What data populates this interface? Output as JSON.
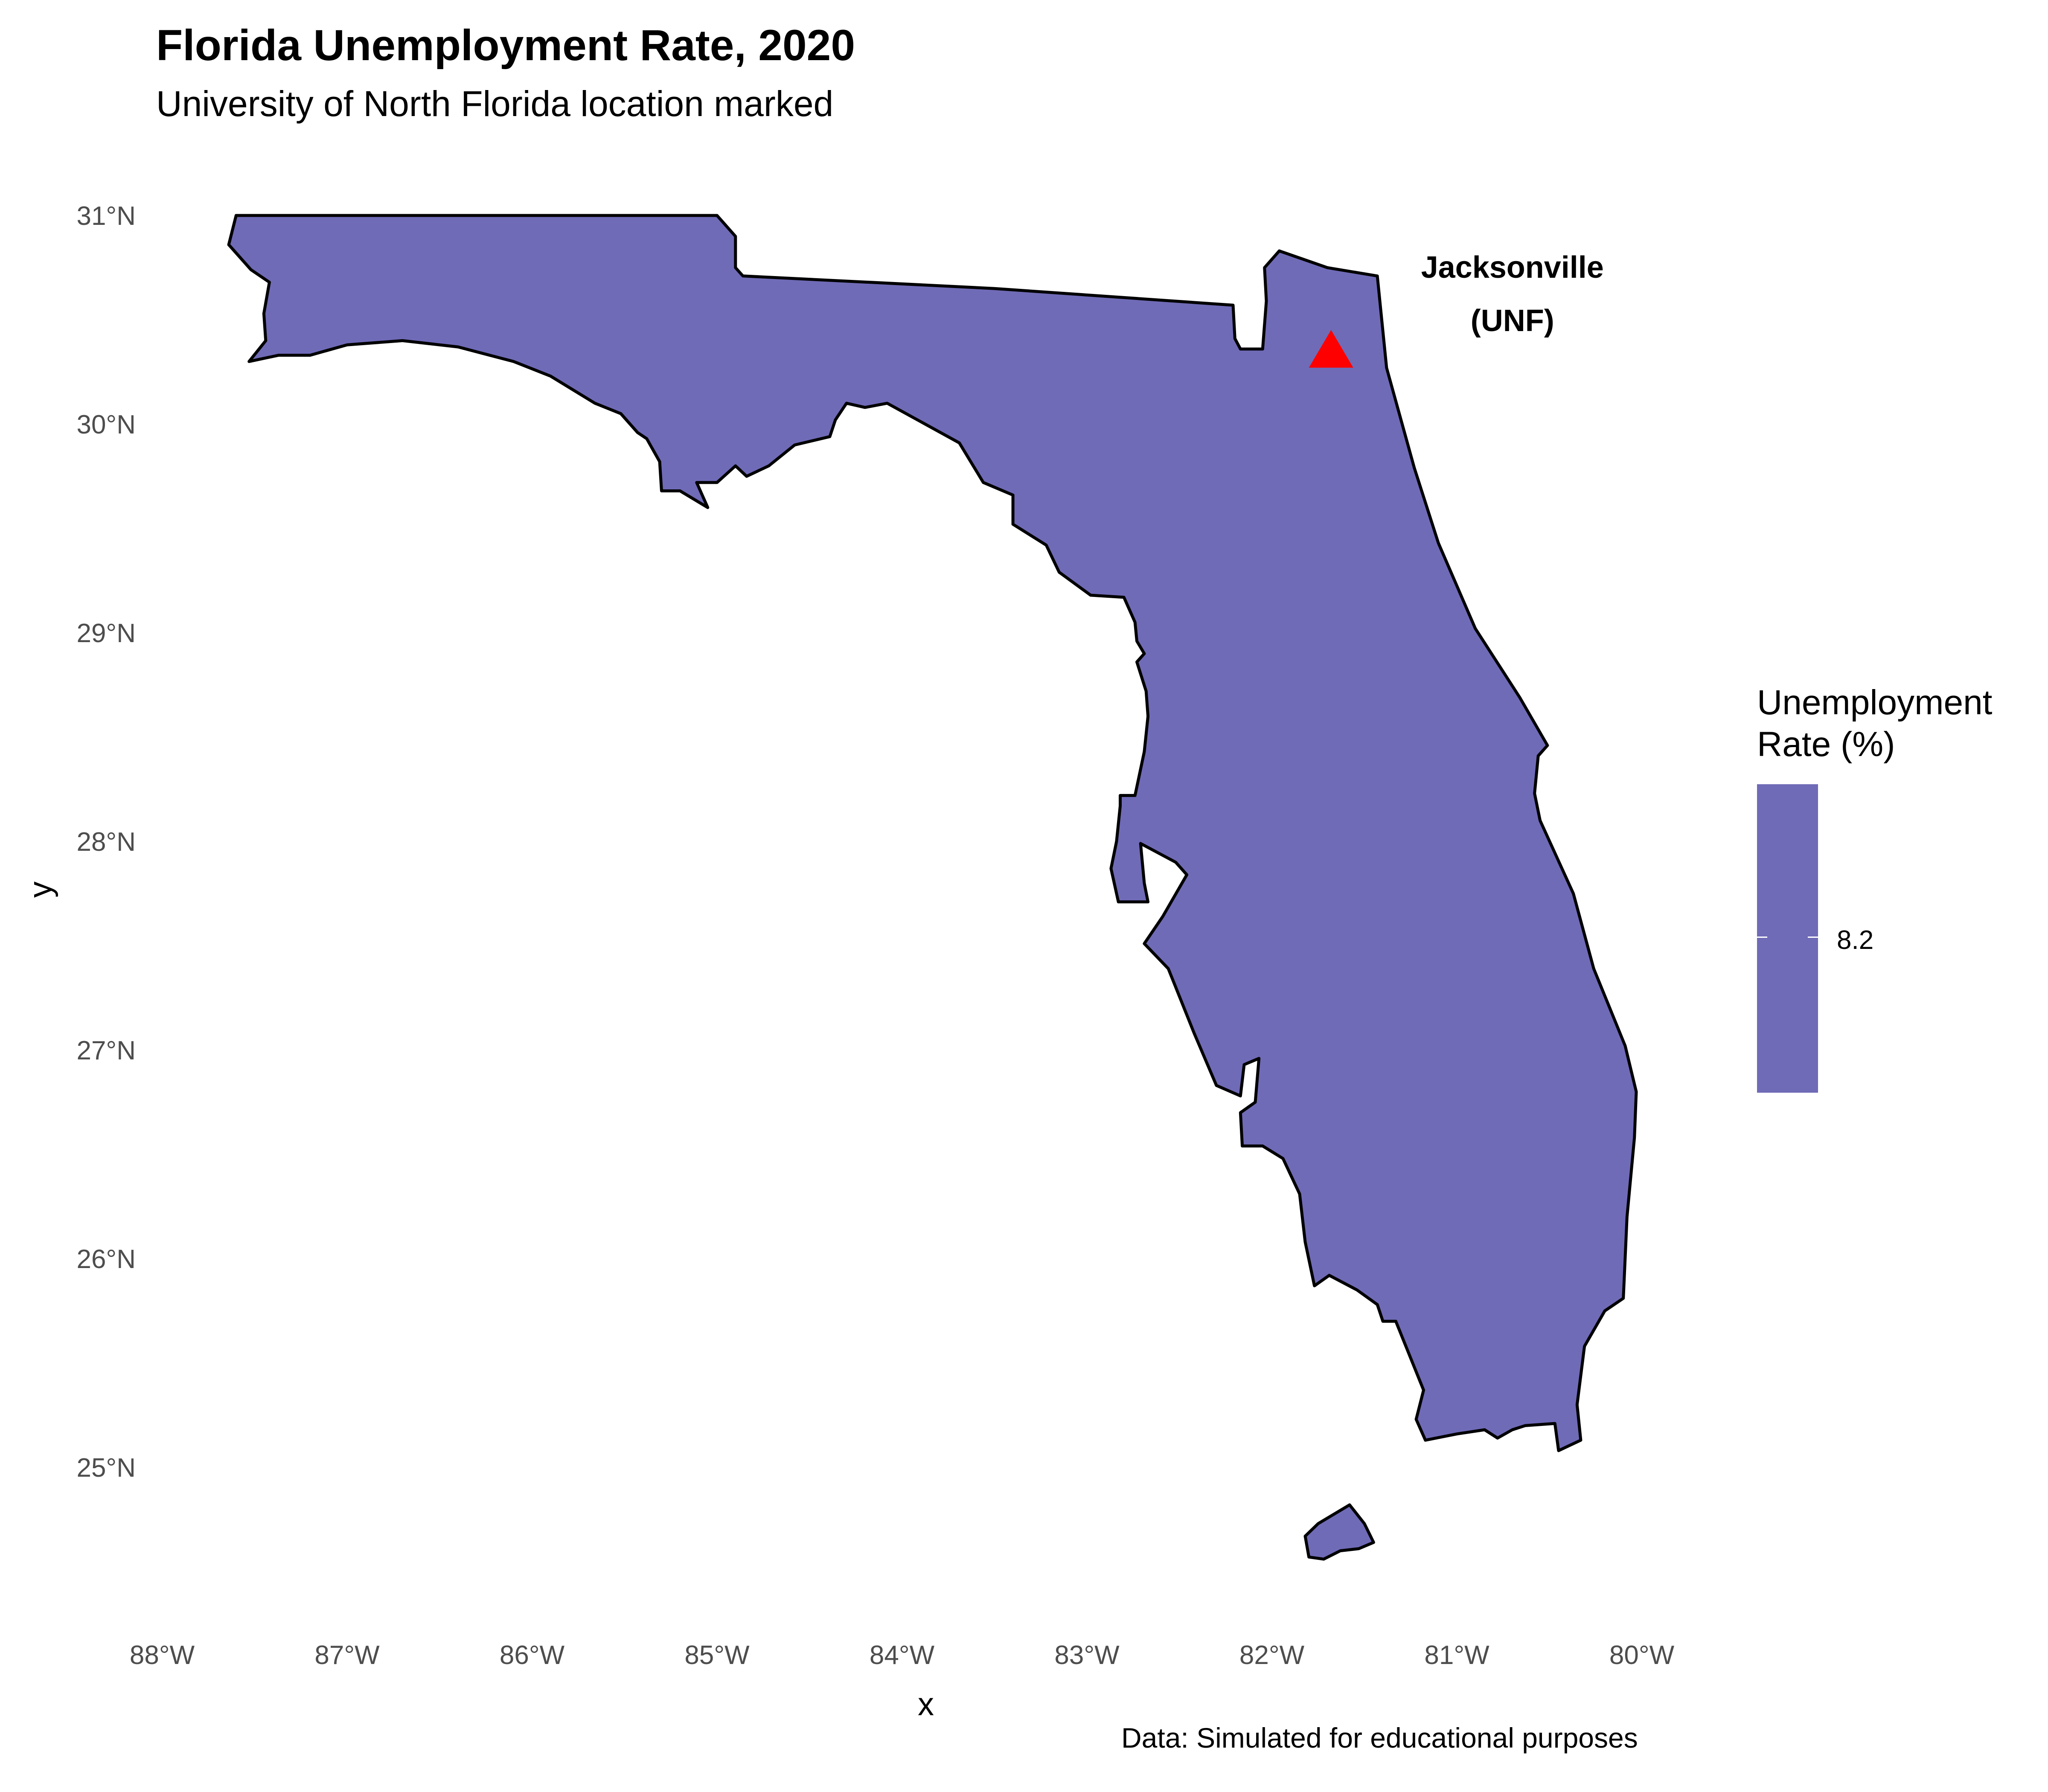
{
  "title": "Florida Unemployment Rate, 2020",
  "subtitle": "University of North Florida location marked",
  "caption": "Data: Simulated for educational purposes",
  "colors": {
    "fill": "#6f6bb7",
    "outline": "#000000",
    "marker": "#ff0000"
  },
  "chart_data": {
    "type": "map",
    "region": "Florida",
    "xlabel": "x",
    "ylabel": "y",
    "xlim": [
      -88,
      -79.9
    ],
    "ylim": [
      24.3,
      31.4
    ],
    "x_ticks": [
      {
        "value": -88,
        "label": "88°W"
      },
      {
        "value": -87,
        "label": "87°W"
      },
      {
        "value": -86,
        "label": "86°W"
      },
      {
        "value": -85,
        "label": "85°W"
      },
      {
        "value": -84,
        "label": "84°W"
      },
      {
        "value": -83,
        "label": "83°W"
      },
      {
        "value": -82,
        "label": "82°W"
      },
      {
        "value": -81,
        "label": "81°W"
      },
      {
        "value": -80,
        "label": "80°W"
      }
    ],
    "y_ticks": [
      {
        "value": 31,
        "label": "31°N"
      },
      {
        "value": 30,
        "label": "30°N"
      },
      {
        "value": 29,
        "label": "29°N"
      },
      {
        "value": 28,
        "label": "28°N"
      },
      {
        "value": 27,
        "label": "27°N"
      },
      {
        "value": 26,
        "label": "26°N"
      },
      {
        "value": 25,
        "label": "25°N"
      }
    ],
    "unemployment_rate": 8.2,
    "legend": {
      "title": "Unemployment Rate (%)",
      "tick_label": "8.2",
      "position": "right"
    },
    "marker": {
      "label_line1": "Jacksonville",
      "label_line2": "(UNF)",
      "lon": -81.68,
      "lat": 30.35,
      "shape": "triangle"
    },
    "mainland": [
      [
        -87.6,
        31.0
      ],
      [
        -86.7,
        31.0
      ],
      [
        -85.0,
        31.0
      ],
      [
        -84.9,
        30.9
      ],
      [
        -84.9,
        30.75
      ],
      [
        -84.86,
        30.71
      ],
      [
        -83.5,
        30.65
      ],
      [
        -82.21,
        30.57
      ],
      [
        -82.2,
        30.41
      ],
      [
        -82.17,
        30.36
      ],
      [
        -82.05,
        30.36
      ],
      [
        -82.03,
        30.59
      ],
      [
        -82.04,
        30.75
      ],
      [
        -81.96,
        30.83
      ],
      [
        -81.7,
        30.75
      ],
      [
        -81.43,
        30.71
      ],
      [
        -81.38,
        30.27
      ],
      [
        -81.23,
        29.79
      ],
      [
        -81.1,
        29.43
      ],
      [
        -80.9,
        29.02
      ],
      [
        -80.66,
        28.69
      ],
      [
        -80.51,
        28.46
      ],
      [
        -80.56,
        28.41
      ],
      [
        -80.58,
        28.23
      ],
      [
        -80.55,
        28.1
      ],
      [
        -80.37,
        27.75
      ],
      [
        -80.26,
        27.39
      ],
      [
        -80.09,
        27.02
      ],
      [
        -80.03,
        26.8
      ],
      [
        -80.04,
        26.58
      ],
      [
        -80.08,
        26.2
      ],
      [
        -80.1,
        25.81
      ],
      [
        -80.2,
        25.75
      ],
      [
        -80.31,
        25.58
      ],
      [
        -80.35,
        25.3
      ],
      [
        -80.33,
        25.13
      ],
      [
        -80.45,
        25.08
      ],
      [
        -80.47,
        25.21
      ],
      [
        -80.63,
        25.2
      ],
      [
        -80.7,
        25.18
      ],
      [
        -80.78,
        25.14
      ],
      [
        -80.85,
        25.18
      ],
      [
        -81.0,
        25.16
      ],
      [
        -81.17,
        25.13
      ],
      [
        -81.22,
        25.23
      ],
      [
        -81.18,
        25.37
      ],
      [
        -81.33,
        25.7
      ],
      [
        -81.4,
        25.7
      ],
      [
        -81.43,
        25.78
      ],
      [
        -81.54,
        25.85
      ],
      [
        -81.69,
        25.92
      ],
      [
        -81.77,
        25.87
      ],
      [
        -81.82,
        26.08
      ],
      [
        -81.85,
        26.31
      ],
      [
        -81.94,
        26.48
      ],
      [
        -82.05,
        26.54
      ],
      [
        -82.16,
        26.54
      ],
      [
        -82.17,
        26.7
      ],
      [
        -82.09,
        26.75
      ],
      [
        -82.07,
        26.96
      ],
      [
        -82.15,
        26.93
      ],
      [
        -82.17,
        26.78
      ],
      [
        -82.3,
        26.83
      ],
      [
        -82.42,
        27.08
      ],
      [
        -82.56,
        27.39
      ],
      [
        -82.69,
        27.51
      ],
      [
        -82.59,
        27.64
      ],
      [
        -82.46,
        27.84
      ],
      [
        -82.52,
        27.9
      ],
      [
        -82.71,
        27.99
      ],
      [
        -82.69,
        27.8
      ],
      [
        -82.67,
        27.71
      ],
      [
        -82.83,
        27.71
      ],
      [
        -82.87,
        27.87
      ],
      [
        -82.84,
        28.0
      ],
      [
        -82.82,
        28.17
      ],
      [
        -82.82,
        28.22
      ],
      [
        -82.74,
        28.22
      ],
      [
        -82.69,
        28.43
      ],
      [
        -82.67,
        28.6
      ],
      [
        -82.68,
        28.72
      ],
      [
        -82.73,
        28.86
      ],
      [
        -82.69,
        28.9
      ],
      [
        -82.73,
        28.96
      ],
      [
        -82.74,
        29.05
      ],
      [
        -82.8,
        29.17
      ],
      [
        -82.98,
        29.18
      ],
      [
        -83.15,
        29.29
      ],
      [
        -83.22,
        29.42
      ],
      [
        -83.4,
        29.52
      ],
      [
        -83.4,
        29.66
      ],
      [
        -83.56,
        29.72
      ],
      [
        -83.69,
        29.91
      ],
      [
        -84.08,
        30.1
      ],
      [
        -84.2,
        30.08
      ],
      [
        -84.3,
        30.1
      ],
      [
        -84.36,
        30.02
      ],
      [
        -84.39,
        29.94
      ],
      [
        -84.58,
        29.9
      ],
      [
        -84.72,
        29.8
      ],
      [
        -84.84,
        29.75
      ],
      [
        -84.9,
        29.8
      ],
      [
        -85.0,
        29.72
      ],
      [
        -85.11,
        29.72
      ],
      [
        -85.05,
        29.6
      ],
      [
        -85.2,
        29.68
      ],
      [
        -85.3,
        29.68
      ],
      [
        -85.31,
        29.82
      ],
      [
        -85.38,
        29.93
      ],
      [
        -85.43,
        29.96
      ],
      [
        -85.52,
        30.05
      ],
      [
        -85.66,
        30.1
      ],
      [
        -85.9,
        30.23
      ],
      [
        -86.1,
        30.3
      ],
      [
        -86.4,
        30.37
      ],
      [
        -86.7,
        30.4
      ],
      [
        -87.0,
        30.38
      ],
      [
        -87.2,
        30.33
      ],
      [
        -87.37,
        30.33
      ],
      [
        -87.53,
        30.3
      ],
      [
        -87.44,
        30.4
      ],
      [
        -87.45,
        30.53
      ],
      [
        -87.42,
        30.68
      ],
      [
        -87.52,
        30.74
      ],
      [
        -87.64,
        30.86
      ]
    ],
    "keys_island": [
      [
        -81.8,
        24.57
      ],
      [
        -81.72,
        24.56
      ],
      [
        -81.63,
        24.6
      ],
      [
        -81.53,
        24.61
      ],
      [
        -81.45,
        24.64
      ],
      [
        -81.5,
        24.73
      ],
      [
        -81.58,
        24.82
      ],
      [
        -81.75,
        24.73
      ],
      [
        -81.82,
        24.67
      ]
    ]
  }
}
